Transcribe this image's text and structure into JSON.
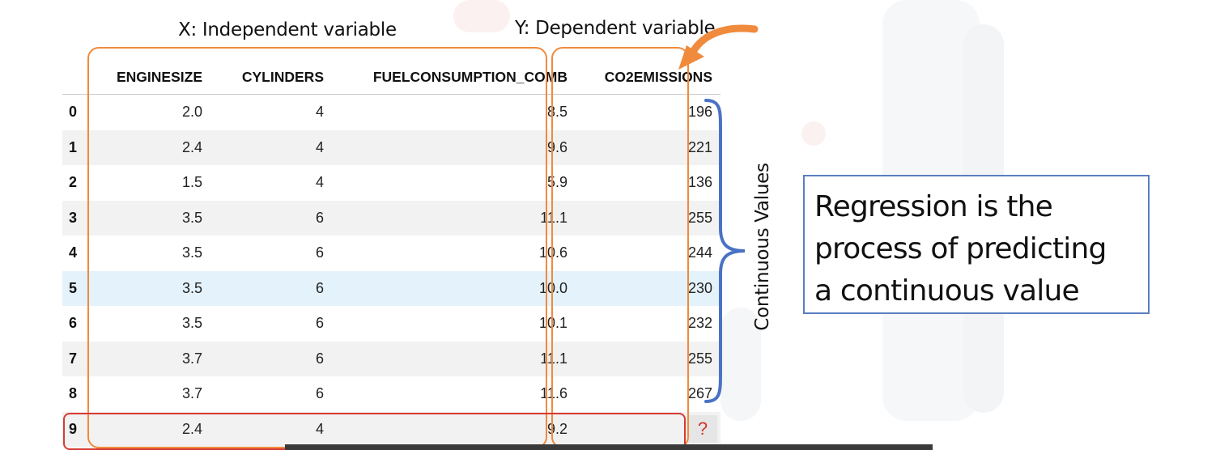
{
  "annotations": {
    "x_label": "X: Independent variable",
    "y_label": "Y: Dependent variable",
    "continuous_label": "Continuous Values"
  },
  "definition": {
    "lines": [
      "Regression is the",
      "process of predicting",
      "a continuous value"
    ]
  },
  "table": {
    "columns": [
      "ENGINESIZE",
      "CYLINDERS",
      "FUELCONSUMPTION_COMB",
      "CO2EMISSIONS"
    ],
    "rows": [
      {
        "index": "0",
        "enginesize": "2.0",
        "cylinders": "4",
        "fuel": "8.5",
        "co2": "196"
      },
      {
        "index": "1",
        "enginesize": "2.4",
        "cylinders": "4",
        "fuel": "9.6",
        "co2": "221"
      },
      {
        "index": "2",
        "enginesize": "1.5",
        "cylinders": "4",
        "fuel": "5.9",
        "co2": "136"
      },
      {
        "index": "3",
        "enginesize": "3.5",
        "cylinders": "6",
        "fuel": "11.1",
        "co2": "255"
      },
      {
        "index": "4",
        "enginesize": "3.5",
        "cylinders": "6",
        "fuel": "10.6",
        "co2": "244"
      },
      {
        "index": "5",
        "enginesize": "3.5",
        "cylinders": "6",
        "fuel": "10.0",
        "co2": "230"
      },
      {
        "index": "6",
        "enginesize": "3.5",
        "cylinders": "6",
        "fuel": "10.1",
        "co2": "232"
      },
      {
        "index": "7",
        "enginesize": "3.7",
        "cylinders": "6",
        "fuel": "11.1",
        "co2": "255"
      },
      {
        "index": "8",
        "enginesize": "3.7",
        "cylinders": "6",
        "fuel": "11.6",
        "co2": "267"
      },
      {
        "index": "9",
        "enginesize": "2.4",
        "cylinders": "4",
        "fuel": "9.2",
        "co2": "?"
      }
    ]
  },
  "colors": {
    "feature_box": "#f08a3c",
    "prediction_row_box": "#d73a32",
    "brace": "#4a72c4",
    "definition_border": "#5b7ec2",
    "highlight_row": "#e4f2fb"
  },
  "icons": {
    "arrow": "curved-arrow-icon",
    "brace": "right-curly-brace-icon"
  }
}
